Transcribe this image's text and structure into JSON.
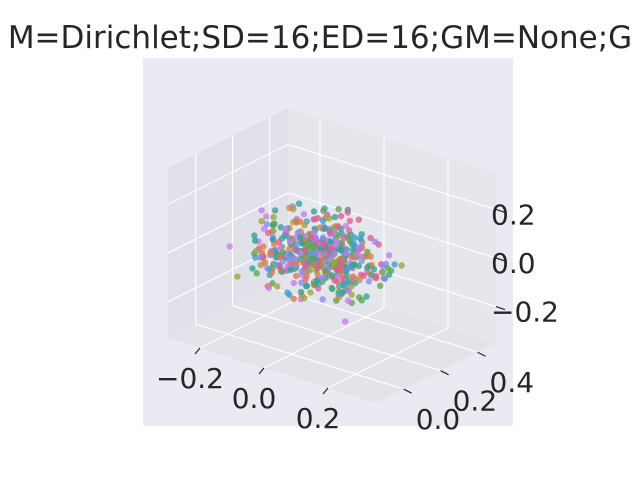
{
  "chart_data": {
    "type": "scatter",
    "projection": "3d",
    "title": "M=Dirichlet;SD=16;ED=16;GM=None;G",
    "xlabel": "",
    "ylabel": "",
    "zlabel": "",
    "x_ticks": [
      "−0.2",
      "0.0",
      "0.2"
    ],
    "y_ticks": [
      "0.0",
      "0.2",
      "0.4"
    ],
    "z_ticks": [
      "−0.2",
      "0.0",
      "0.2"
    ],
    "xlim": [
      -0.3,
      0.35
    ],
    "ylim": [
      -0.15,
      0.5
    ],
    "zlim": [
      -0.35,
      0.35
    ],
    "grid": true,
    "legend": "none",
    "point_count": 520,
    "note": "dense cloud of ~520 points (one per token) centred near the origin in all three axes; individual values are not readable",
    "series_colors": [
      "#e8588f",
      "#3aa0cf",
      "#5aa84a",
      "#a0a435",
      "#2ca58f",
      "#c77cf0",
      "#e07a3e",
      "#8b8bf4"
    ],
    "background": "#eaeaf2"
  }
}
